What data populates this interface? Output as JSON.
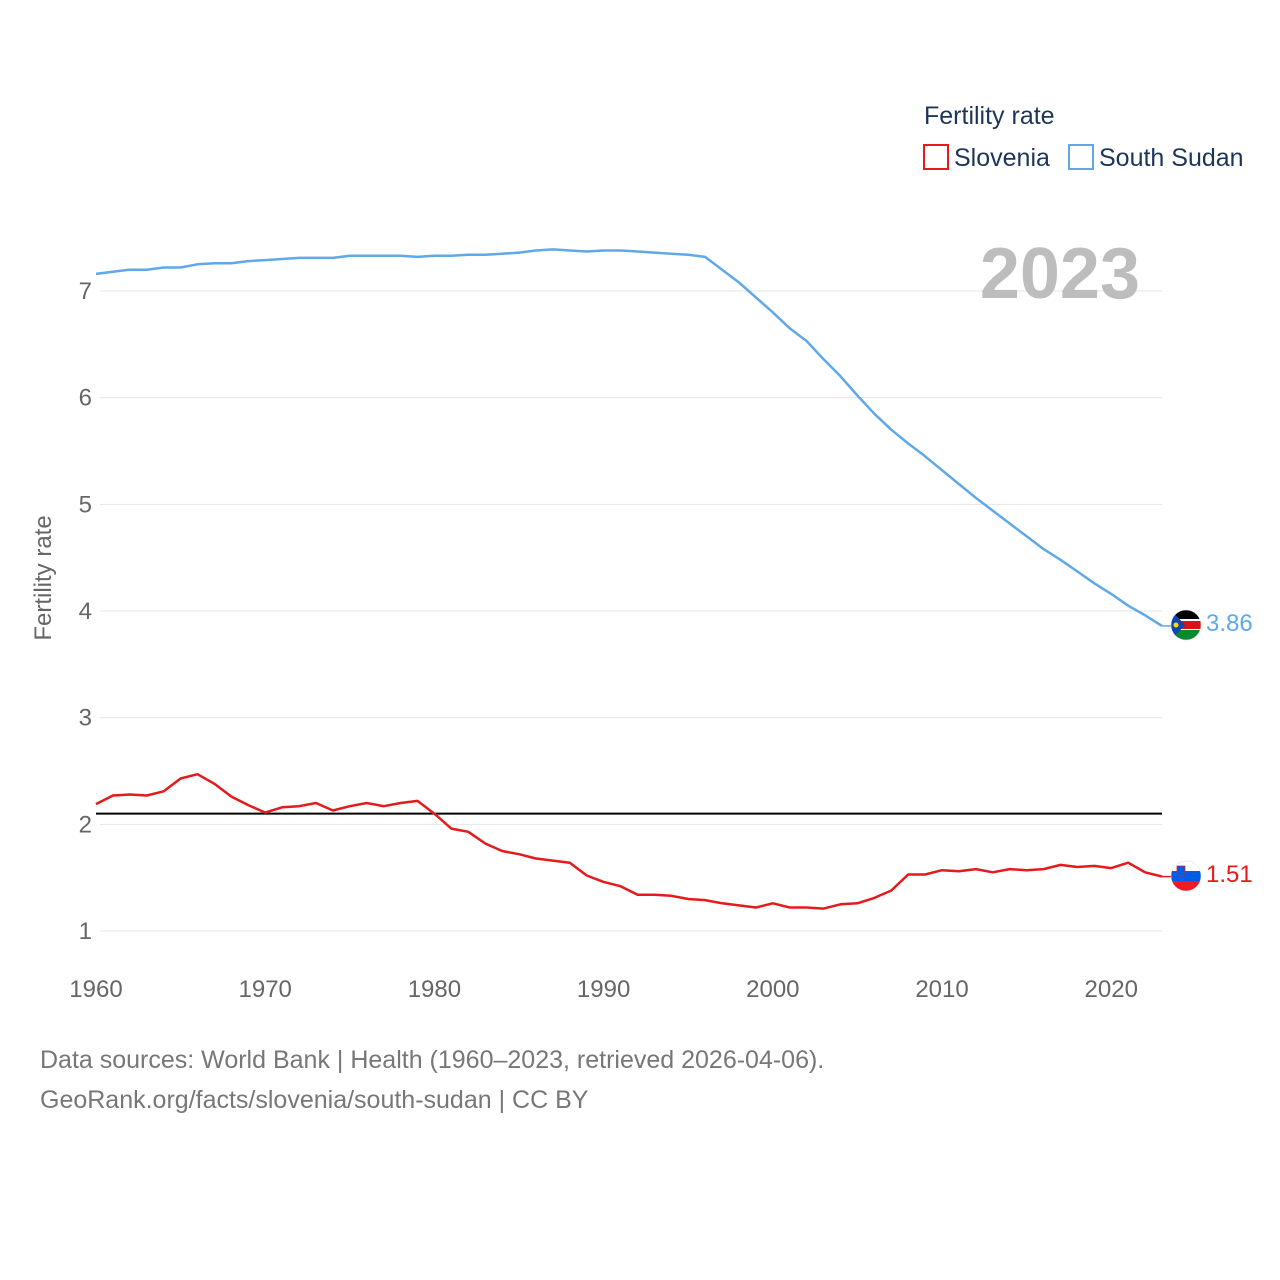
{
  "chart_data": {
    "type": "line",
    "title": "Fertility rate",
    "ylabel": "Fertility rate",
    "xlabel": "",
    "year_display": "2023",
    "x_ticks": [
      "1960",
      "1970",
      "1980",
      "1990",
      "2000",
      "2010",
      "2020"
    ],
    "y_ticks": [
      "1",
      "2",
      "3",
      "4",
      "5",
      "6",
      "7"
    ],
    "xlim": [
      1960,
      2023
    ],
    "ylim": [
      0.8,
      7.6
    ],
    "reference_line": 2.1,
    "x": [
      1960,
      1961,
      1962,
      1963,
      1964,
      1965,
      1966,
      1967,
      1968,
      1969,
      1970,
      1971,
      1972,
      1973,
      1974,
      1975,
      1976,
      1977,
      1978,
      1979,
      1980,
      1981,
      1982,
      1983,
      1984,
      1985,
      1986,
      1987,
      1988,
      1989,
      1990,
      1991,
      1992,
      1993,
      1994,
      1995,
      1996,
      1997,
      1998,
      1999,
      2000,
      2001,
      2002,
      2003,
      2004,
      2005,
      2006,
      2007,
      2008,
      2009,
      2010,
      2011,
      2012,
      2013,
      2014,
      2015,
      2016,
      2017,
      2018,
      2019,
      2020,
      2021,
      2022,
      2023
    ],
    "series": [
      {
        "name": "Slovenia",
        "color": "#e41a1c",
        "end_label": "1.51",
        "values": [
          2.19,
          2.27,
          2.28,
          2.27,
          2.31,
          2.43,
          2.47,
          2.38,
          2.26,
          2.18,
          2.11,
          2.16,
          2.17,
          2.2,
          2.13,
          2.17,
          2.2,
          2.17,
          2.2,
          2.22,
          2.1,
          1.96,
          1.93,
          1.82,
          1.75,
          1.72,
          1.68,
          1.66,
          1.64,
          1.52,
          1.46,
          1.42,
          1.34,
          1.34,
          1.33,
          1.3,
          1.29,
          1.26,
          1.24,
          1.22,
          1.26,
          1.22,
          1.22,
          1.21,
          1.25,
          1.26,
          1.31,
          1.38,
          1.53,
          1.53,
          1.57,
          1.56,
          1.58,
          1.55,
          1.58,
          1.57,
          1.58,
          1.62,
          1.6,
          1.61,
          1.59,
          1.64,
          1.55,
          1.51
        ]
      },
      {
        "name": "South Sudan",
        "color": "#5fa9e8",
        "end_label": "3.86",
        "values": [
          7.16,
          7.18,
          7.2,
          7.2,
          7.22,
          7.22,
          7.25,
          7.26,
          7.26,
          7.28,
          7.29,
          7.3,
          7.31,
          7.31,
          7.31,
          7.33,
          7.33,
          7.33,
          7.33,
          7.32,
          7.33,
          7.33,
          7.34,
          7.34,
          7.35,
          7.36,
          7.38,
          7.39,
          7.38,
          7.37,
          7.38,
          7.38,
          7.37,
          7.36,
          7.35,
          7.34,
          7.32,
          7.2,
          7.08,
          6.94,
          6.8,
          6.65,
          6.53,
          6.36,
          6.2,
          6.02,
          5.85,
          5.7,
          5.57,
          5.45,
          5.32,
          5.19,
          5.06,
          4.94,
          4.82,
          4.7,
          4.58,
          4.48,
          4.37,
          4.26,
          4.16,
          4.05,
          3.96,
          3.86
        ]
      }
    ],
    "legend": {
      "title": "Fertility rate",
      "position": "top-right"
    }
  },
  "footer": {
    "line1": "Data sources: World Bank | Health (1960–2023, retrieved 2026-04-06).",
    "line2": "GeoRank.org/facts/slovenia/south-sudan | CC BY"
  }
}
